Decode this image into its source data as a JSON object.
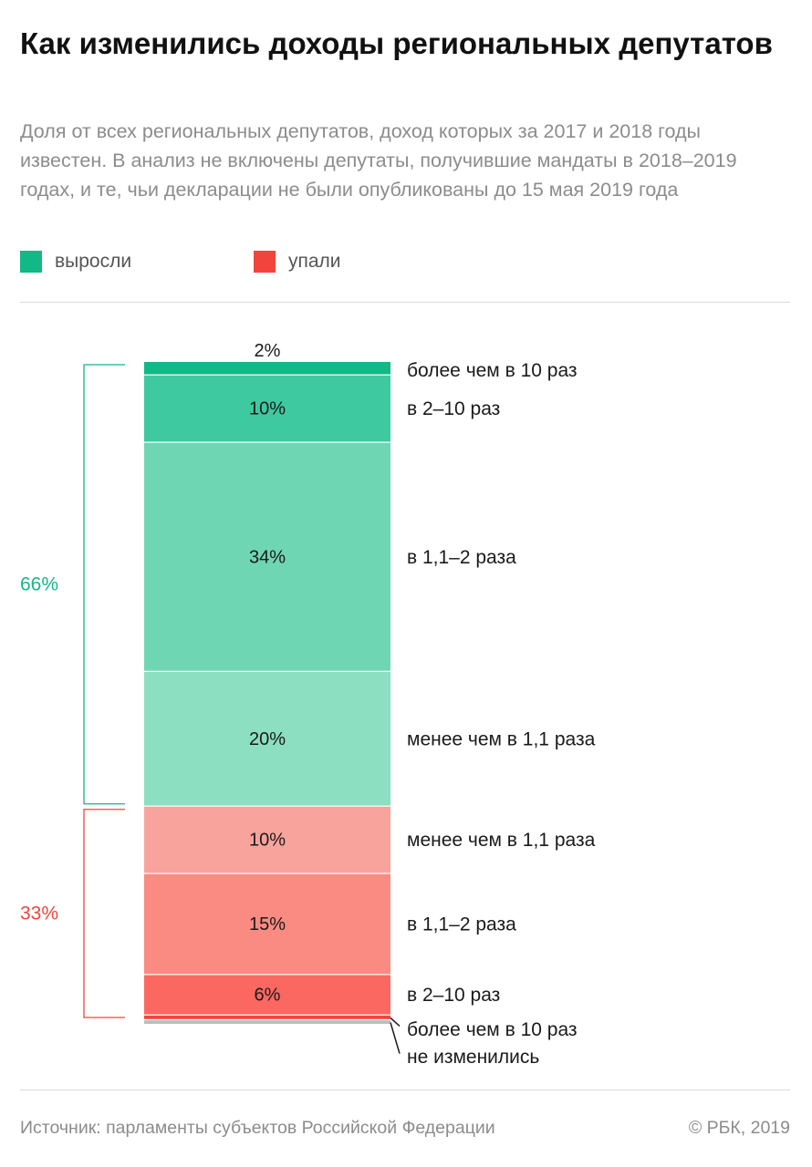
{
  "title": "Как изменились доходы региональных депутатов",
  "subtitle": "Доля от всех региональных депутатов, доход которых за 2017 и 2018 годы известен. В анализ не включены депутаты, получившие мандаты в 2018–2019 годах, и те, чьи декларации не были опубликованы до 15 мая 2019 года",
  "legend": [
    {
      "label": "выросли",
      "color": "#13b887"
    },
    {
      "label": "упали",
      "color": "#f2443d"
    }
  ],
  "chart_data": {
    "type": "bar",
    "stacked": true,
    "unit": "%",
    "segments": [
      {
        "label": "более чем в 10 раз",
        "value": 2,
        "value_label": "2%",
        "group": "выросли",
        "color": "#13b887"
      },
      {
        "label": "в 2–10 раз",
        "value": 10,
        "value_label": "10%",
        "group": "выросли",
        "color": "#3fc9a0"
      },
      {
        "label": "в 1,1–2 раза",
        "value": 34,
        "value_label": "34%",
        "group": "выросли",
        "color": "#6fd6b4"
      },
      {
        "label": "менее чем в 1,1 раза",
        "value": 20,
        "value_label": "20%",
        "group": "выросли",
        "color": "#8ddfc2"
      },
      {
        "label": "менее чем в 1,1 раза",
        "value": 10,
        "value_label": "10%",
        "group": "упали",
        "color": "#f8a39c"
      },
      {
        "label": "в 1,1–2 раза",
        "value": 15,
        "value_label": "15%",
        "group": "упали",
        "color": "#f98b82"
      },
      {
        "label": "в 2–10 раз",
        "value": 6,
        "value_label": "6%",
        "group": "упали",
        "color": "#fb6861"
      },
      {
        "label": "более чем в 10 раз",
        "value": 0.7,
        "value_label": "",
        "group": "упали",
        "color": "#f2443d"
      },
      {
        "label": "не изменились",
        "value": 0.7,
        "value_label": "",
        "group": "не изменились",
        "color": "#bdbdbd"
      }
    ],
    "group_totals": [
      {
        "group": "выросли",
        "label": "66%",
        "color": "#13b887"
      },
      {
        "group": "упали",
        "label": "33%",
        "color": "#f2443d"
      }
    ]
  },
  "footer": {
    "source": "Источник: парламенты субъектов Российской Федерации",
    "copyright": "© РБК, 2019"
  }
}
